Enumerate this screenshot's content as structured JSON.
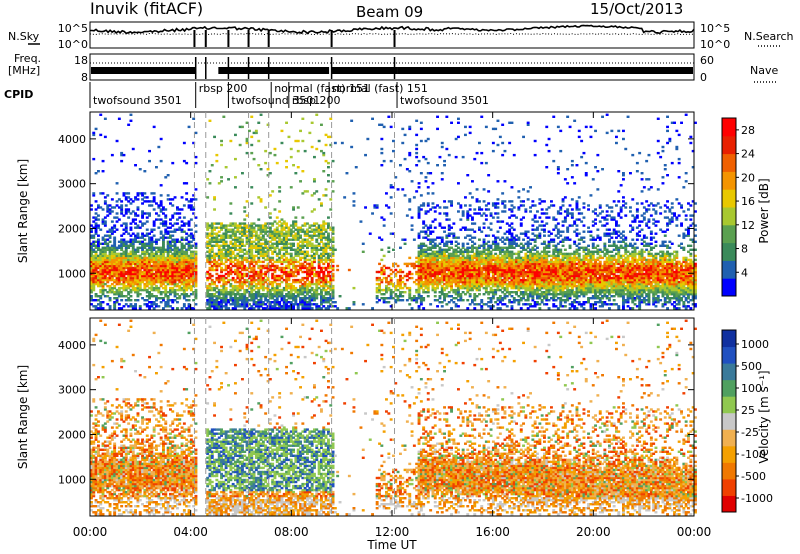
{
  "header": {
    "station": "Inuvik (fitACF)",
    "beam": "Beam 09",
    "date": "15/Oct/2013"
  },
  "top_strip": {
    "left_label": "N.Sky",
    "left_ticks": [
      "10^5",
      "10^0"
    ],
    "right_ticks": [
      "10^5",
      "10^0"
    ],
    "right_label": "N.Search"
  },
  "freq_strip": {
    "left_label_1": "Freq.",
    "left_label_2": "[MHz]",
    "left_ticks": [
      "18",
      "8"
    ],
    "right_ticks": [
      "60",
      "0"
    ],
    "right_label": "Nave"
  },
  "cpid": {
    "label": "CPID",
    "segments": [
      {
        "name": "twofsound 3501",
        "start": 0.0,
        "end": 4.2
      },
      {
        "name": "rbsp 200",
        "start": 4.2,
        "end": 5.5
      },
      {
        "name": "twofsound 3501",
        "start": 5.5,
        "end": 7.2
      },
      {
        "name": "normal (fast) 151",
        "start": 7.2,
        "end": 9.5
      },
      {
        "name": "rbsp 200",
        "start": 7.9,
        "end": 9.5
      },
      {
        "name": "normal (fast) 151",
        "start": 9.5,
        "end": 12.2
      },
      {
        "name": "twofsound 3501",
        "start": 12.2,
        "end": 24.0
      }
    ]
  },
  "colors": {
    "power": [
      "#0000ff",
      "#2060b0",
      "#3a8a5a",
      "#5aa050",
      "#a8c830",
      "#e8c800",
      "#f49400",
      "#f06000",
      "#e82000",
      "#ff0000"
    ],
    "velocity": [
      "#e00000",
      "#f04000",
      "#f07800",
      "#f4a000",
      "#f0b050",
      "#c8c8c8",
      "#90c850",
      "#50a060",
      "#3a7a9a",
      "#2050c0",
      "#1030a0"
    ]
  },
  "chart_data": [
    {
      "type": "heatmap",
      "title": "",
      "xlabel": "",
      "ylabel": "Slant Range [km]",
      "xlim": [
        0,
        24
      ],
      "ylim": [
        180,
        4600
      ],
      "y_ticks": [
        "4000",
        "3000",
        "2000",
        "1000"
      ],
      "colorbar": {
        "label": "Power [dB]",
        "ticks": [
          "28",
          "24",
          "20",
          "16",
          "12",
          "8",
          "4"
        ],
        "range": [
          0,
          30
        ]
      }
    },
    {
      "type": "heatmap",
      "title": "",
      "xlabel": "Time UT",
      "ylabel": "Slant Range [km]",
      "xlim": [
        0,
        24
      ],
      "ylim": [
        180,
        4600
      ],
      "x_ticks": [
        "00:00",
        "04:00",
        "08:00",
        "12:00",
        "16:00",
        "20:00",
        "00:00"
      ],
      "y_ticks": [
        "4000",
        "3000",
        "2000",
        "1000"
      ],
      "colorbar": {
        "label": "Velocity [m s⁻¹]",
        "ticks": [
          "1000",
          "500",
          "100",
          "25",
          "-25",
          "-100",
          "-500",
          "-1000"
        ]
      }
    }
  ]
}
